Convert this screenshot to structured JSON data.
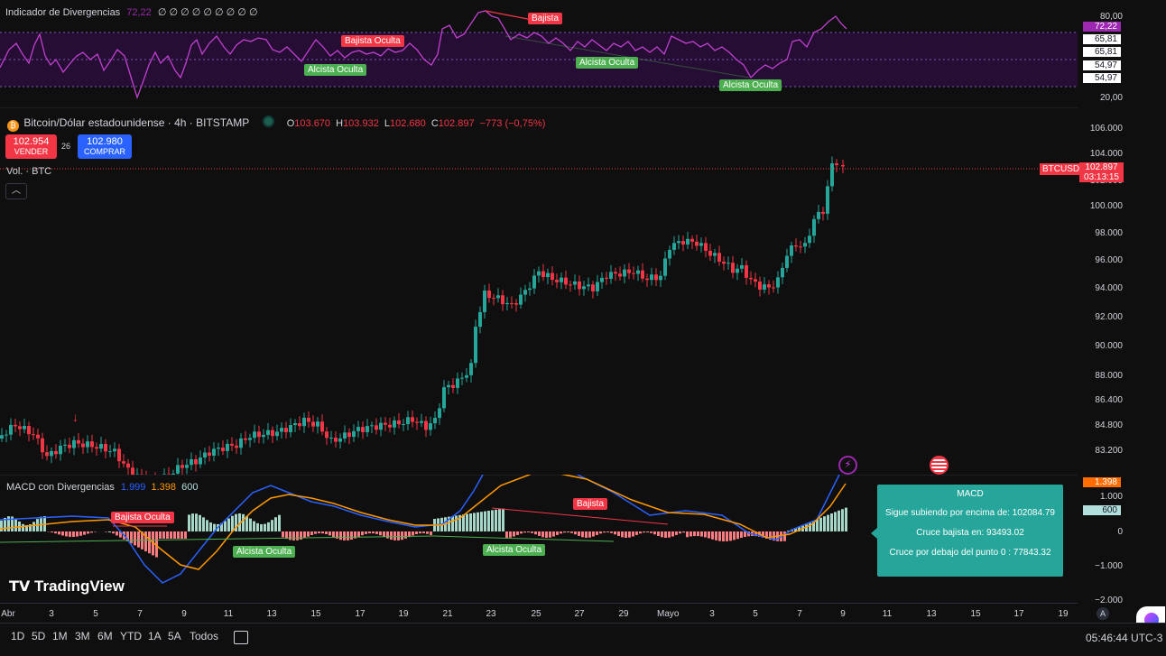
{
  "rsi": {
    "title": "Indicador de Divergencias",
    "value": "72,22",
    "zeros": "∅ ∅ ∅ ∅ ∅ ∅ ∅ ∅ ∅",
    "axis": [
      "80,00",
      "20,00"
    ],
    "badges": [
      "72,22",
      "65,81",
      "65,81",
      "54,97",
      "54,97"
    ],
    "tags": [
      "Bajista",
      "Bajista Oculta",
      "Alcista Oculta",
      "Alcista Oculta",
      "Alcista Oculta"
    ]
  },
  "symbol": {
    "icon": "bitcoin-icon",
    "name": "Bitcoin/Dólar estadounidense · 4h · BITSTAMP",
    "o_label": "O",
    "o": "103.670",
    "h_label": "H",
    "h": "103.932",
    "l_label": "L",
    "l": "102.680",
    "c_label": "C",
    "c": "102.897",
    "change": "−773 (−0,75%)"
  },
  "trade": {
    "sell_price": "102.954",
    "sell_label": "VENDER",
    "spread": "26",
    "buy_price": "102.980",
    "buy_label": "COMPRAR"
  },
  "volume_label": "Vol. · BTC",
  "price_axis": [
    "106.000",
    "104.000",
    "102.000",
    "100.000",
    "98.000",
    "96.000",
    "94.000",
    "92.000",
    "90.000",
    "88.000",
    "86.400",
    "84.800",
    "83.200"
  ],
  "current_price": {
    "ticker": "BTCUSD",
    "price": "102.897",
    "countdown": "03:13:15"
  },
  "macd": {
    "title": "MACD con Divergencias",
    "v1": "1.999",
    "v2": "1.398",
    "v3": "600",
    "axis": [
      "1.000",
      "0",
      "−1.000",
      "−2.000"
    ],
    "badge_orange": "1.398",
    "badge_teal": "600",
    "tags": [
      "Bajista Oculta",
      "Alcista Oculta",
      "Bajista",
      "Alcista Oculta"
    ]
  },
  "tooltip": {
    "title": "MACD",
    "lines": [
      "Sigue subiendo por encima de: 102084.79",
      "Cruce bajista en: 93493.02",
      "Cruce por debajo del punto 0 : 77843.32"
    ]
  },
  "logo": "TradingView",
  "time_axis": [
    "Abr",
    "3",
    "5",
    "7",
    "9",
    "11",
    "13",
    "15",
    "17",
    "19",
    "21",
    "23",
    "25",
    "27",
    "29",
    "Mayo",
    "3",
    "5",
    "7",
    "9",
    "11",
    "13",
    "15",
    "17",
    "19"
  ],
  "ranges": [
    "1D",
    "5D",
    "1M",
    "3M",
    "6M",
    "YTD",
    "1A",
    "5A",
    "Todos"
  ],
  "clock": "05:46:44 UTC-3",
  "auto_label": "A",
  "colors": {
    "up": "#26a69a",
    "down": "#f23645",
    "macd": "#2962ff",
    "signal": "#ff9800",
    "rsi": "#9c27b0",
    "tooltip": "#26a69a"
  }
}
